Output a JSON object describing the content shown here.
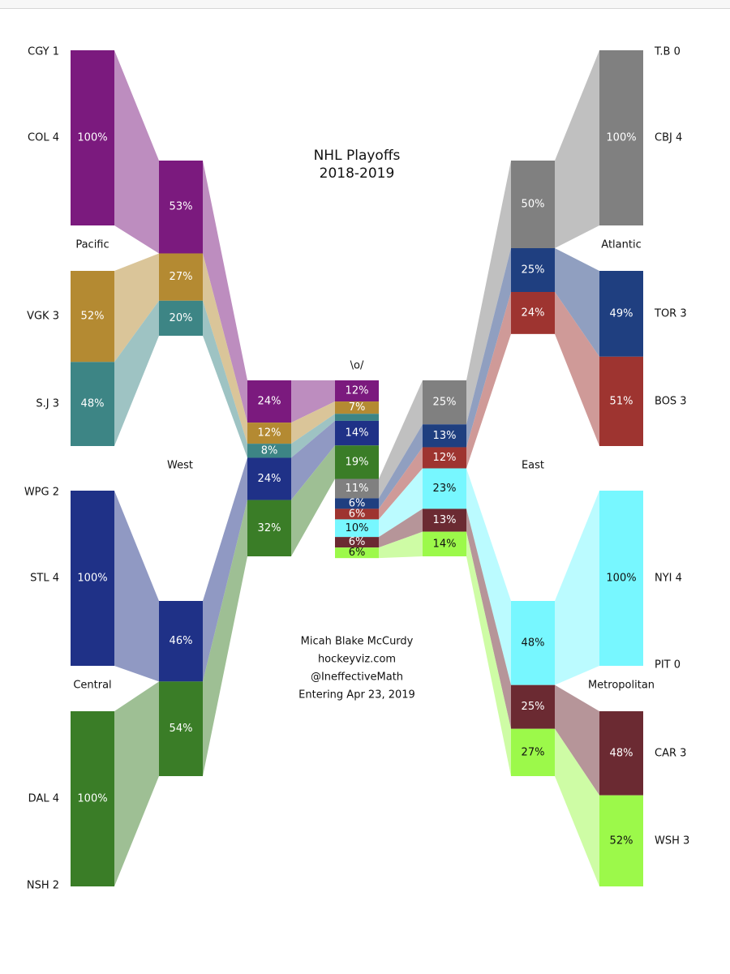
{
  "chart_data": {
    "type": "bracket-flow",
    "title": "NHL Playoffs",
    "subtitle": "2018-2019",
    "center_label": "\\o/",
    "credits": [
      "Micah Blake McCurdy",
      "hockeyviz.com",
      "@IneffectiveMath",
      "Entering Apr 23, 2019"
    ],
    "conference_labels": {
      "west": "West",
      "east": "East"
    },
    "division_labels": {
      "pacific": "Pacific",
      "central": "Central",
      "atlantic": "Atlantic",
      "metropolitan": "Metropolitan"
    },
    "colors": {
      "CGY": "#a6a6a6",
      "COL": "#7b1a7e",
      "VGK": "#b48a32",
      "SJ": "#3d8585",
      "WPG": "#1f3f8f",
      "STL": "#1f3187",
      "DAL": "#3a7d27",
      "NSH": "#c7a948",
      "TB": "#1d4e9e",
      "CBJ": "#808080",
      "TOR": "#1f3f80",
      "BOS": "#9e3430",
      "NYI": "#77f7ff",
      "PIT": "#444444",
      "CAR": "#6b2a32",
      "WSH": "#9cf94a"
    },
    "teams": [
      {
        "side": "left",
        "name": "CGY 1",
        "pct": "0%"
      },
      {
        "side": "left",
        "name": "COL 4",
        "pct": "100%"
      },
      {
        "side": "left",
        "name": "VGK 3",
        "pct": "52%"
      },
      {
        "side": "left",
        "name": "S.J 3",
        "pct": "48%"
      },
      {
        "side": "left",
        "name": "WPG 2",
        "pct": "0%"
      },
      {
        "side": "left",
        "name": "STL 4",
        "pct": "100%"
      },
      {
        "side": "left",
        "name": "DAL 4",
        "pct": "100%"
      },
      {
        "side": "left",
        "name": "NSH 2",
        "pct": "0%"
      },
      {
        "side": "right",
        "name": "T.B 0",
        "pct": "0%"
      },
      {
        "side": "right",
        "name": "CBJ 4",
        "pct": "100%"
      },
      {
        "side": "right",
        "name": "TOR 3",
        "pct": "49%"
      },
      {
        "side": "right",
        "name": "BOS 3",
        "pct": "51%"
      },
      {
        "side": "right",
        "name": "NYI 4",
        "pct": "100%"
      },
      {
        "side": "right",
        "name": "PIT 0",
        "pct": "0%"
      },
      {
        "side": "right",
        "name": "CAR 3",
        "pct": "48%"
      },
      {
        "side": "right",
        "name": "WSH 3",
        "pct": "52%"
      }
    ],
    "round2_west": [
      {
        "team": "COL",
        "pct": "53%"
      },
      {
        "team": "VGK",
        "pct": "27%"
      },
      {
        "team": "SJ",
        "pct": "20%"
      },
      {
        "team": "STL",
        "pct": "46%"
      },
      {
        "team": "DAL",
        "pct": "54%"
      }
    ],
    "round2_east": [
      {
        "team": "CBJ",
        "pct": "50%"
      },
      {
        "team": "TOR",
        "pct": "25%"
      },
      {
        "team": "BOS",
        "pct": "24%"
      },
      {
        "team": "NYI",
        "pct": "48%"
      },
      {
        "team": "CAR",
        "pct": "25%"
      },
      {
        "team": "WSH",
        "pct": "27%"
      }
    ],
    "conf_final_west": [
      {
        "team": "COL",
        "pct": "24%"
      },
      {
        "team": "VGK",
        "pct": "12%"
      },
      {
        "team": "SJ",
        "pct": "8%"
      },
      {
        "team": "STL",
        "pct": "24%"
      },
      {
        "team": "DAL",
        "pct": "32%"
      }
    ],
    "conf_final_east": [
      {
        "team": "CBJ",
        "pct": "25%"
      },
      {
        "team": "TOR",
        "pct": "13%"
      },
      {
        "team": "BOS",
        "pct": "12%"
      },
      {
        "team": "NYI",
        "pct": "23%"
      },
      {
        "team": "CAR",
        "pct": "13%"
      },
      {
        "team": "WSH",
        "pct": "14%"
      }
    ],
    "cup_winner": [
      {
        "team": "COL",
        "pct": "12%"
      },
      {
        "team": "VGK",
        "pct": "7%"
      },
      {
        "team": "SJ",
        "pct": "4%"
      },
      {
        "team": "STL",
        "pct": "14%"
      },
      {
        "team": "DAL",
        "pct": "19%"
      },
      {
        "team": "CBJ",
        "pct": "11%"
      },
      {
        "team": "TOR",
        "pct": "6%"
      },
      {
        "team": "BOS",
        "pct": "6%"
      },
      {
        "team": "NYI",
        "pct": "10%"
      },
      {
        "team": "CAR",
        "pct": "6%"
      },
      {
        "team": "WSH",
        "pct": "6%"
      }
    ]
  }
}
